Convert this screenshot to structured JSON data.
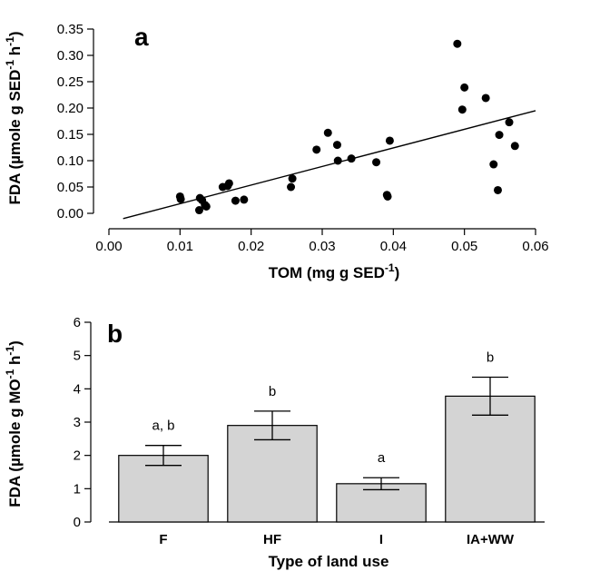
{
  "chart_data": [
    {
      "panel": "a",
      "type": "scatter",
      "xlabel": "TOM (mg g SED",
      "xlabel_sup": "-1",
      "xlabel_end": ")",
      "ylabel": "FDA (µmole g SED",
      "ylabel_sup1": "-1",
      "ylabel_mid": " h",
      "ylabel_sup2": "-1",
      "ylabel_end": ")",
      "xlim": [
        0,
        0.06
      ],
      "ylim": [
        0,
        0.35
      ],
      "xticks": [
        "0.00",
        "0.01",
        "0.02",
        "0.03",
        "0.04",
        "0.05",
        "0.06"
      ],
      "yticks": [
        "0.00",
        "0.05",
        "0.10",
        "0.15",
        "0.20",
        "0.25",
        "0.30",
        "0.35"
      ],
      "points": [
        [
          0.01,
          0.032
        ],
        [
          0.0101,
          0.027
        ],
        [
          0.0127,
          0.006
        ],
        [
          0.0128,
          0.029
        ],
        [
          0.0131,
          0.025
        ],
        [
          0.0135,
          0.016
        ],
        [
          0.0137,
          0.013
        ],
        [
          0.016,
          0.05
        ],
        [
          0.0167,
          0.052
        ],
        [
          0.0169,
          0.057
        ],
        [
          0.0178,
          0.024
        ],
        [
          0.019,
          0.026
        ],
        [
          0.0256,
          0.05
        ],
        [
          0.0258,
          0.066
        ],
        [
          0.0292,
          0.121
        ],
        [
          0.0308,
          0.153
        ],
        [
          0.0321,
          0.13
        ],
        [
          0.0322,
          0.1
        ],
        [
          0.0341,
          0.104
        ],
        [
          0.0376,
          0.097
        ],
        [
          0.0391,
          0.035
        ],
        [
          0.0392,
          0.032
        ],
        [
          0.0395,
          0.138
        ],
        [
          0.049,
          0.322
        ],
        [
          0.0497,
          0.197
        ],
        [
          0.05,
          0.239
        ],
        [
          0.053,
          0.219
        ],
        [
          0.0541,
          0.093
        ],
        [
          0.0547,
          0.044
        ],
        [
          0.0549,
          0.149
        ],
        [
          0.0563,
          0.173
        ],
        [
          0.0571,
          0.128
        ]
      ],
      "trendline": {
        "x": [
          0.002,
          0.06
        ],
        "y": [
          -0.01,
          0.195
        ]
      },
      "grid": false,
      "color": "#000000"
    },
    {
      "panel": "b",
      "type": "bar",
      "xlabel": "Type of land use",
      "ylabel": "FDA (µmole g MO",
      "ylabel_sup1": "-1",
      "ylabel_mid": " h",
      "ylabel_sup2": "-1",
      "ylabel_end": ")",
      "ylim": [
        0,
        6
      ],
      "yticks": [
        "0",
        "1",
        "2",
        "3",
        "4",
        "5",
        "6"
      ],
      "categories": [
        "F",
        "HF",
        "I",
        "IA+WW"
      ],
      "values": [
        2.0,
        2.9,
        1.15,
        3.78
      ],
      "errors": [
        0.3,
        0.43,
        0.18,
        0.57
      ],
      "significance": [
        "a, b",
        "b",
        "a",
        "b"
      ],
      "bar_color": "#d4d4d4",
      "grid": false
    }
  ]
}
